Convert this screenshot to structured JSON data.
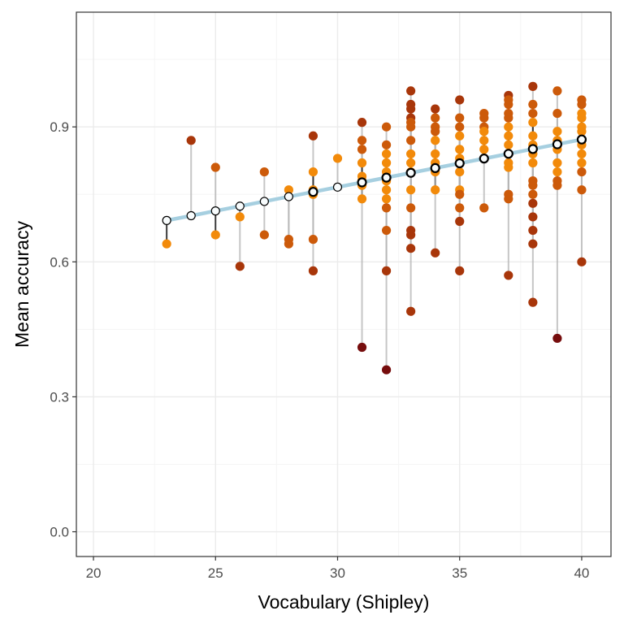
{
  "chart_data": {
    "type": "scatter",
    "title": "",
    "xlabel": "Vocabulary (Shipley)",
    "ylabel": "Mean accuracy",
    "xlim": [
      19.3,
      41.2
    ],
    "ylim": [
      -0.055,
      1.155
    ],
    "x_ticks": [
      20,
      25,
      30,
      35,
      40
    ],
    "x_tick_labels": [
      "20",
      "25",
      "30",
      "35",
      "40"
    ],
    "y_ticks": [
      0.0,
      0.3,
      0.6,
      0.9
    ],
    "y_tick_labels": [
      "0.0",
      "0.3",
      "0.6",
      "0.9"
    ],
    "grid": true,
    "legend": "none",
    "colors": {
      "regression_line": "#a6cfe0",
      "predicted_fill": "#f8fcfd",
      "predicted_stroke": "#000000",
      "residual_line_light": "#b3b3b3",
      "residual_line_dark": "#262626",
      "point_small_residual": "#f28a0a",
      "point_medium_residual": "#cc5a0a",
      "point_large_residual": "#a8360a",
      "point_extreme_residual": "#760d0d",
      "grid_major": "#ebebeb",
      "grid_minor": "#f5f5f5",
      "panel_border": "#333333"
    },
    "regression": {
      "x_start": 23,
      "x_end": 40,
      "y_start": 0.692,
      "y_end": 0.872
    },
    "series": [
      {
        "values": [
          {
            "x": 23,
            "y": 0.64
          },
          {
            "x": 24,
            "y": 0.87
          },
          {
            "x": 25,
            "y": 0.81
          },
          {
            "x": 25,
            "y": 0.66
          },
          {
            "x": 26,
            "y": 0.7
          },
          {
            "x": 26,
            "y": 0.59
          },
          {
            "x": 27,
            "y": 0.8
          },
          {
            "x": 27,
            "y": 0.66
          },
          {
            "x": 28,
            "y": 0.76
          },
          {
            "x": 28,
            "y": 0.65
          },
          {
            "x": 28,
            "y": 0.64
          },
          {
            "x": 29,
            "y": 0.88
          },
          {
            "x": 29,
            "y": 0.8
          },
          {
            "x": 29,
            "y": 0.76
          },
          {
            "x": 29,
            "y": 0.75
          },
          {
            "x": 29,
            "y": 0.65
          },
          {
            "x": 29,
            "y": 0.58
          },
          {
            "x": 30,
            "y": 0.83
          },
          {
            "x": 31,
            "y": 0.91
          },
          {
            "x": 31,
            "y": 0.87
          },
          {
            "x": 31,
            "y": 0.85
          },
          {
            "x": 31,
            "y": 0.82
          },
          {
            "x": 31,
            "y": 0.79
          },
          {
            "x": 31,
            "y": 0.78
          },
          {
            "x": 31,
            "y": 0.77
          },
          {
            "x": 31,
            "y": 0.74
          },
          {
            "x": 31,
            "y": 0.41
          },
          {
            "x": 32,
            "y": 0.9
          },
          {
            "x": 32,
            "y": 0.86
          },
          {
            "x": 32,
            "y": 0.84
          },
          {
            "x": 32,
            "y": 0.82
          },
          {
            "x": 32,
            "y": 0.8
          },
          {
            "x": 32,
            "y": 0.78
          },
          {
            "x": 32,
            "y": 0.76
          },
          {
            "x": 32,
            "y": 0.74
          },
          {
            "x": 32,
            "y": 0.72
          },
          {
            "x": 32,
            "y": 0.67
          },
          {
            "x": 32,
            "y": 0.58
          },
          {
            "x": 32,
            "y": 0.36
          },
          {
            "x": 33,
            "y": 0.98
          },
          {
            "x": 33,
            "y": 0.95
          },
          {
            "x": 33,
            "y": 0.94
          },
          {
            "x": 33,
            "y": 0.92
          },
          {
            "x": 33,
            "y": 0.91
          },
          {
            "x": 33,
            "y": 0.9
          },
          {
            "x": 33,
            "y": 0.87
          },
          {
            "x": 33,
            "y": 0.84
          },
          {
            "x": 33,
            "y": 0.82
          },
          {
            "x": 33,
            "y": 0.8
          },
          {
            "x": 33,
            "y": 0.76
          },
          {
            "x": 33,
            "y": 0.72
          },
          {
            "x": 33,
            "y": 0.67
          },
          {
            "x": 33,
            "y": 0.66
          },
          {
            "x": 33,
            "y": 0.63
          },
          {
            "x": 33,
            "y": 0.49
          },
          {
            "x": 34,
            "y": 0.94
          },
          {
            "x": 34,
            "y": 0.92
          },
          {
            "x": 34,
            "y": 0.9
          },
          {
            "x": 34,
            "y": 0.89
          },
          {
            "x": 34,
            "y": 0.87
          },
          {
            "x": 34,
            "y": 0.84
          },
          {
            "x": 34,
            "y": 0.82
          },
          {
            "x": 34,
            "y": 0.8
          },
          {
            "x": 34,
            "y": 0.76
          },
          {
            "x": 34,
            "y": 0.62
          },
          {
            "x": 35,
            "y": 0.96
          },
          {
            "x": 35,
            "y": 0.92
          },
          {
            "x": 35,
            "y": 0.9
          },
          {
            "x": 35,
            "y": 0.88
          },
          {
            "x": 35,
            "y": 0.85
          },
          {
            "x": 35,
            "y": 0.83
          },
          {
            "x": 35,
            "y": 0.8
          },
          {
            "x": 35,
            "y": 0.76
          },
          {
            "x": 35,
            "y": 0.75
          },
          {
            "x": 35,
            "y": 0.72
          },
          {
            "x": 35,
            "y": 0.69
          },
          {
            "x": 35,
            "y": 0.58
          },
          {
            "x": 36,
            "y": 0.93
          },
          {
            "x": 36,
            "y": 0.92
          },
          {
            "x": 36,
            "y": 0.9
          },
          {
            "x": 36,
            "y": 0.89
          },
          {
            "x": 36,
            "y": 0.87
          },
          {
            "x": 36,
            "y": 0.85
          },
          {
            "x": 36,
            "y": 0.83
          },
          {
            "x": 36,
            "y": 0.72
          },
          {
            "x": 37,
            "y": 0.97
          },
          {
            "x": 37,
            "y": 0.96
          },
          {
            "x": 37,
            "y": 0.95
          },
          {
            "x": 37,
            "y": 0.93
          },
          {
            "x": 37,
            "y": 0.92
          },
          {
            "x": 37,
            "y": 0.9
          },
          {
            "x": 37,
            "y": 0.88
          },
          {
            "x": 37,
            "y": 0.86
          },
          {
            "x": 37,
            "y": 0.84
          },
          {
            "x": 37,
            "y": 0.82
          },
          {
            "x": 37,
            "y": 0.81
          },
          {
            "x": 37,
            "y": 0.75
          },
          {
            "x": 37,
            "y": 0.74
          },
          {
            "x": 37,
            "y": 0.57
          },
          {
            "x": 38,
            "y": 0.99
          },
          {
            "x": 38,
            "y": 0.95
          },
          {
            "x": 38,
            "y": 0.93
          },
          {
            "x": 38,
            "y": 0.91
          },
          {
            "x": 38,
            "y": 0.88
          },
          {
            "x": 38,
            "y": 0.86
          },
          {
            "x": 38,
            "y": 0.84
          },
          {
            "x": 38,
            "y": 0.82
          },
          {
            "x": 38,
            "y": 0.78
          },
          {
            "x": 38,
            "y": 0.77
          },
          {
            "x": 38,
            "y": 0.75
          },
          {
            "x": 38,
            "y": 0.73
          },
          {
            "x": 38,
            "y": 0.7
          },
          {
            "x": 38,
            "y": 0.67
          },
          {
            "x": 38,
            "y": 0.64
          },
          {
            "x": 38,
            "y": 0.51
          },
          {
            "x": 39,
            "y": 0.98
          },
          {
            "x": 39,
            "y": 0.93
          },
          {
            "x": 39,
            "y": 0.89
          },
          {
            "x": 39,
            "y": 0.87
          },
          {
            "x": 39,
            "y": 0.85
          },
          {
            "x": 39,
            "y": 0.82
          },
          {
            "x": 39,
            "y": 0.8
          },
          {
            "x": 39,
            "y": 0.78
          },
          {
            "x": 39,
            "y": 0.77
          },
          {
            "x": 39,
            "y": 0.43
          },
          {
            "x": 40,
            "y": 0.96
          },
          {
            "x": 40,
            "y": 0.95
          },
          {
            "x": 40,
            "y": 0.93
          },
          {
            "x": 40,
            "y": 0.92
          },
          {
            "x": 40,
            "y": 0.9
          },
          {
            "x": 40,
            "y": 0.89
          },
          {
            "x": 40,
            "y": 0.87
          },
          {
            "x": 40,
            "y": 0.86
          },
          {
            "x": 40,
            "y": 0.84
          },
          {
            "x": 40,
            "y": 0.82
          },
          {
            "x": 40,
            "y": 0.8
          },
          {
            "x": 40,
            "y": 0.76
          },
          {
            "x": 40,
            "y": 0.6
          }
        ]
      }
    ]
  }
}
